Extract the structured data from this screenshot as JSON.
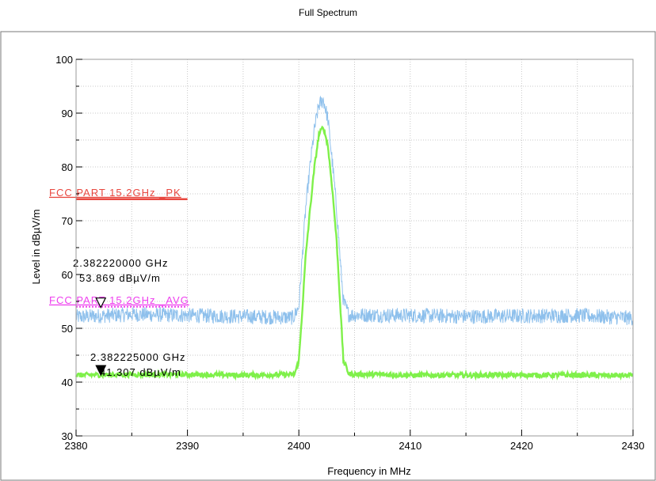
{
  "chart_data": {
    "type": "line",
    "title": "Full Spectrum",
    "xlabel": "Frequency in MHz",
    "ylabel": "Level in dBµV/m",
    "xlim": [
      2380,
      2430
    ],
    "ylim": [
      30,
      100
    ],
    "x_ticks": [
      2380,
      2390,
      2400,
      2410,
      2420,
      2430
    ],
    "y_ticks": [
      30,
      40,
      50,
      60,
      70,
      80,
      90,
      100
    ],
    "grid": true,
    "colors": {
      "peak_trace": "#8ec0ec",
      "avg_trace": "#7ff04a",
      "pk_limit": "#e8473f",
      "avg_limit": "#ee3fee",
      "frame": "#7a7a7a",
      "grid": "#c8c8c8"
    },
    "series": [
      {
        "key": "peak",
        "x": [
          2380,
          2385,
          2390,
          2395,
          2399.5,
          2400.0,
          2400.3,
          2400.6,
          2401.0,
          2401.4,
          2401.8,
          2402.2,
          2402.6,
          2403.0,
          2403.4,
          2403.7,
          2404.0,
          2404.5,
          2410,
          2415,
          2420,
          2425,
          2430
        ],
        "y": [
          52.1,
          52.6,
          52.4,
          52.2,
          52.0,
          54,
          63,
          72,
          80,
          87,
          91.5,
          92.5,
          89,
          81,
          72,
          63,
          55,
          52.5,
          52.4,
          52.2,
          52.3,
          52.4,
          51.9
        ]
      },
      {
        "key": "average",
        "x": [
          2380,
          2385,
          2390,
          2395,
          2399.6,
          2400.0,
          2400.3,
          2400.6,
          2401.0,
          2401.4,
          2401.8,
          2402.2,
          2402.6,
          2403.0,
          2403.4,
          2403.7,
          2404.0,
          2404.5,
          2410,
          2415,
          2420,
          2425,
          2430
        ],
        "y": [
          41.3,
          41.4,
          41.4,
          41.3,
          41.4,
          44,
          53,
          63,
          72,
          80,
          86,
          87.5,
          84,
          76,
          66,
          55,
          44,
          41.5,
          41.3,
          41.3,
          41.3,
          41.3,
          41.2
        ]
      }
    ],
    "limit_lines": [
      {
        "key": "pk",
        "label": "FCC PART 15.2GHz _PK",
        "level": 74,
        "x_start": 2380,
        "x_end": 2390
      },
      {
        "key": "avg",
        "label": "FCC PART 15.2GHz _AVG",
        "level": 54,
        "x_start": 2380,
        "x_end": 2390
      }
    ],
    "markers": [
      {
        "key": "m1",
        "freq": "2.382220000 GHz",
        "level": "53.869 dBµV/m",
        "x": 2382.22,
        "y": 53.869,
        "style": "open"
      },
      {
        "key": "m2",
        "freq": "2.382225000 GHz",
        "level": "41.307 dBµV/m",
        "x": 2382.225,
        "y": 41.307,
        "style": "filled"
      }
    ]
  }
}
